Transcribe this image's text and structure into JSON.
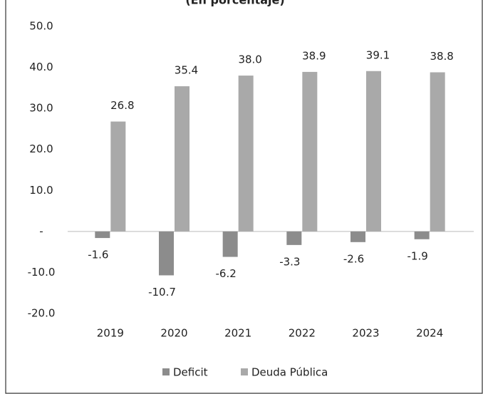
{
  "chart_data": {
    "type": "bar",
    "title": "(En porcentaje)",
    "categories": [
      "2019",
      "2020",
      "2021",
      "2022",
      "2023",
      "2024"
    ],
    "series": [
      {
        "name": "Deficit",
        "color": "#8c8c8c",
        "values": [
          -1.6,
          -10.7,
          -6.2,
          -3.3,
          -2.6,
          -1.9
        ]
      },
      {
        "name": "Deuda Pública",
        "color": "#a9a9a9",
        "values": [
          26.8,
          35.4,
          38.0,
          38.9,
          39.1,
          38.8
        ],
        "value_labels": [
          "26.8",
          "35.4",
          "38.0",
          "38.9",
          "39.1",
          "38.8"
        ]
      }
    ],
    "ylim": [
      -20,
      50
    ],
    "yticks": [
      {
        "value": -20,
        "label": "-20.0"
      },
      {
        "value": -10,
        "label": "-10.0"
      },
      {
        "value": 0,
        "label": "-"
      },
      {
        "value": 10,
        "label": "10.0"
      },
      {
        "value": 20,
        "label": "20.0"
      },
      {
        "value": 30,
        "label": "30.0"
      },
      {
        "value": 40,
        "label": "40.0"
      },
      {
        "value": 50,
        "label": "50.0"
      }
    ],
    "grid": false
  }
}
